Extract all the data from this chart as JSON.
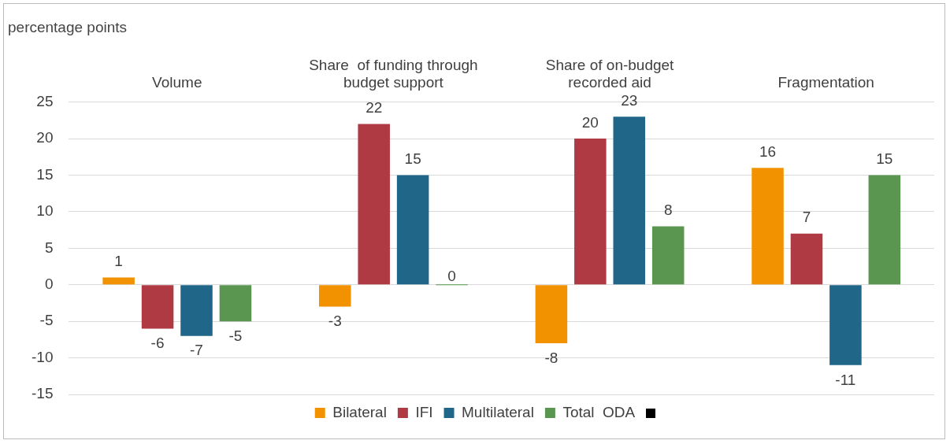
{
  "chart_data": {
    "type": "bar",
    "ylabel": "percentage points",
    "categories": [
      "Volume",
      "Share  of funding through\nbudget support",
      "Share of on-budget\nrecorded aid",
      "Fragmentation"
    ],
    "series": [
      {
        "name": "Bilateral",
        "color": "#f39200",
        "values": [
          1,
          -3,
          -8,
          16
        ]
      },
      {
        "name": "IFI",
        "color": "#b03a44",
        "values": [
          -6,
          22,
          20,
          7
        ]
      },
      {
        "name": "Multilateral",
        "color": "#1f6688",
        "values": [
          -7,
          15,
          23,
          -11
        ]
      },
      {
        "name": "Total  ODA",
        "color": "#5a9650",
        "values": [
          -5,
          0,
          8,
          15
        ]
      }
    ],
    "ylim": [
      -15,
      25
    ],
    "yticks": [
      -15,
      -10,
      -5,
      0,
      5,
      10,
      15,
      20,
      25
    ],
    "grid": "y",
    "legend": "bottom",
    "data_labels": true
  }
}
